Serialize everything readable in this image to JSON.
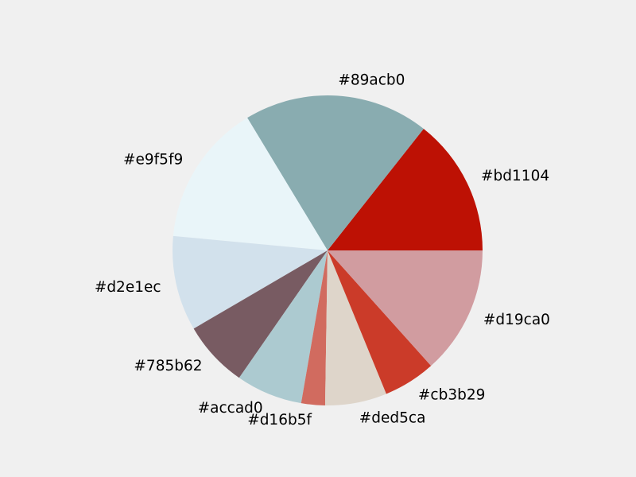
{
  "chart_data": {
    "type": "pie",
    "title": "",
    "start_angle_deg": 0,
    "direction": "counterclockwise",
    "slices": [
      {
        "label": "#bd1104",
        "value": 14.5,
        "color": "#bd1104"
      },
      {
        "label": "#89acb0",
        "value": 19.5,
        "color": "#89acb0"
      },
      {
        "label": "#e9f5f9",
        "value": 15.0,
        "color": "#e9f5f9"
      },
      {
        "label": "#d2e1ec",
        "value": 10.0,
        "color": "#d2e1ec"
      },
      {
        "label": "#785b62",
        "value": 7.0,
        "color": "#785b62"
      },
      {
        "label": "#accad0",
        "value": 7.0,
        "color": "#accad0"
      },
      {
        "label": "#d16b5f",
        "value": 2.5,
        "color": "#d16b5f"
      },
      {
        "label": "#ded5ca",
        "value": 6.5,
        "color": "#ded5ca"
      },
      {
        "label": "#cb3b29",
        "value": 5.5,
        "color": "#cb3b29"
      },
      {
        "label": "#d19ca0",
        "value": 13.5,
        "color": "#d19ca0"
      }
    ]
  }
}
